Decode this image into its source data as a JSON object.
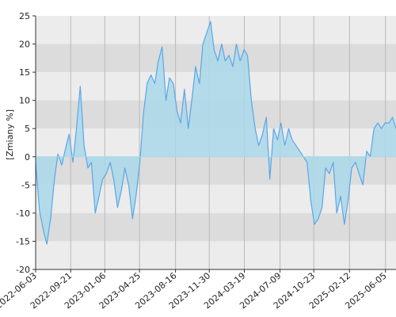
{
  "chart_data": {
    "type": "area",
    "ylabel": "[Zmiany %]",
    "ylim": [
      -20,
      25
    ],
    "y_ticks": [
      25,
      20,
      15,
      10,
      5,
      0,
      -5,
      -10,
      -15,
      -20
    ],
    "xlim": [
      "2022-06-03",
      "2025-07-08"
    ],
    "x_ticks": [
      "2022-06-03",
      "2022-09-21",
      "2023-01-06",
      "2023-04-25",
      "2023-08-16",
      "2023-11-30",
      "2024-03-19",
      "2024-07-09",
      "2024-10-23",
      "2025-02-12",
      "2025-06-05"
    ],
    "grid": true,
    "series": [
      {
        "color": "#5aa6e8",
        "fill": "#a9d8ea",
        "x": [
          "2022-06-03",
          "2022-06-15",
          "2022-06-27",
          "2022-07-08",
          "2022-07-20",
          "2022-08-01",
          "2022-08-12",
          "2022-08-24",
          "2022-09-05",
          "2022-09-16",
          "2022-09-28",
          "2022-10-10",
          "2022-10-21",
          "2022-11-02",
          "2022-11-14",
          "2022-11-25",
          "2022-12-07",
          "2022-12-19",
          "2022-12-30",
          "2023-01-11",
          "2023-01-23",
          "2023-02-03",
          "2023-02-15",
          "2023-02-27",
          "2023-03-10",
          "2023-03-22",
          "2023-04-03",
          "2023-04-14",
          "2023-04-26",
          "2023-05-08",
          "2023-05-19",
          "2023-05-31",
          "2023-06-12",
          "2023-06-23",
          "2023-07-05",
          "2023-07-17",
          "2023-07-28",
          "2023-08-09",
          "2023-08-21",
          "2023-09-01",
          "2023-09-13",
          "2023-09-25",
          "2023-10-06",
          "2023-10-18",
          "2023-10-30",
          "2023-11-10",
          "2023-11-22",
          "2023-12-04",
          "2023-12-15",
          "2023-12-27",
          "2024-01-08",
          "2024-01-19",
          "2024-01-31",
          "2024-02-12",
          "2024-02-23",
          "2024-03-06",
          "2024-03-18",
          "2024-03-29",
          "2024-04-10",
          "2024-04-22",
          "2024-05-03",
          "2024-05-15",
          "2024-05-27",
          "2024-06-07",
          "2024-06-19",
          "2024-07-01",
          "2024-07-12",
          "2024-07-24",
          "2024-08-05",
          "2024-08-16",
          "2024-08-28",
          "2024-09-09",
          "2024-09-20",
          "2024-10-02",
          "2024-10-14",
          "2024-10-25",
          "2024-11-06",
          "2024-11-18",
          "2024-11-29",
          "2024-12-11",
          "2024-12-23",
          "2025-01-03",
          "2025-01-15",
          "2025-01-27",
          "2025-02-07",
          "2025-02-19",
          "2025-03-03",
          "2025-03-14",
          "2025-03-26",
          "2025-04-07",
          "2025-04-18",
          "2025-04-30",
          "2025-05-12",
          "2025-05-23",
          "2025-06-04",
          "2025-06-16",
          "2025-06-27",
          "2025-07-08"
        ],
        "values": [
          -1,
          -9.5,
          -13,
          -15.5,
          -11,
          -4,
          0.5,
          -1.5,
          1.5,
          4,
          -1,
          5.5,
          12.5,
          2,
          -2,
          -1,
          -10,
          -7,
          -4,
          -3,
          -1,
          -4,
          -9,
          -6,
          -2,
          -5,
          -11,
          -7,
          -1,
          8,
          13,
          14.5,
          13,
          17,
          19.5,
          10,
          14,
          13,
          8,
          6,
          12,
          5,
          10,
          16,
          13,
          20,
          22,
          24,
          19,
          17,
          20,
          17,
          18,
          16,
          20,
          17,
          19,
          18,
          10,
          5,
          2,
          4,
          7,
          -4,
          5,
          3,
          6,
          2,
          5,
          3,
          2,
          1,
          0,
          -1,
          -8,
          -12,
          -11,
          -9,
          -2,
          -3,
          -1,
          -10,
          -7,
          -12,
          -8,
          -2,
          -1,
          -3,
          -5,
          1,
          0,
          5,
          6,
          5,
          6,
          6,
          7,
          5
        ]
      }
    ]
  }
}
